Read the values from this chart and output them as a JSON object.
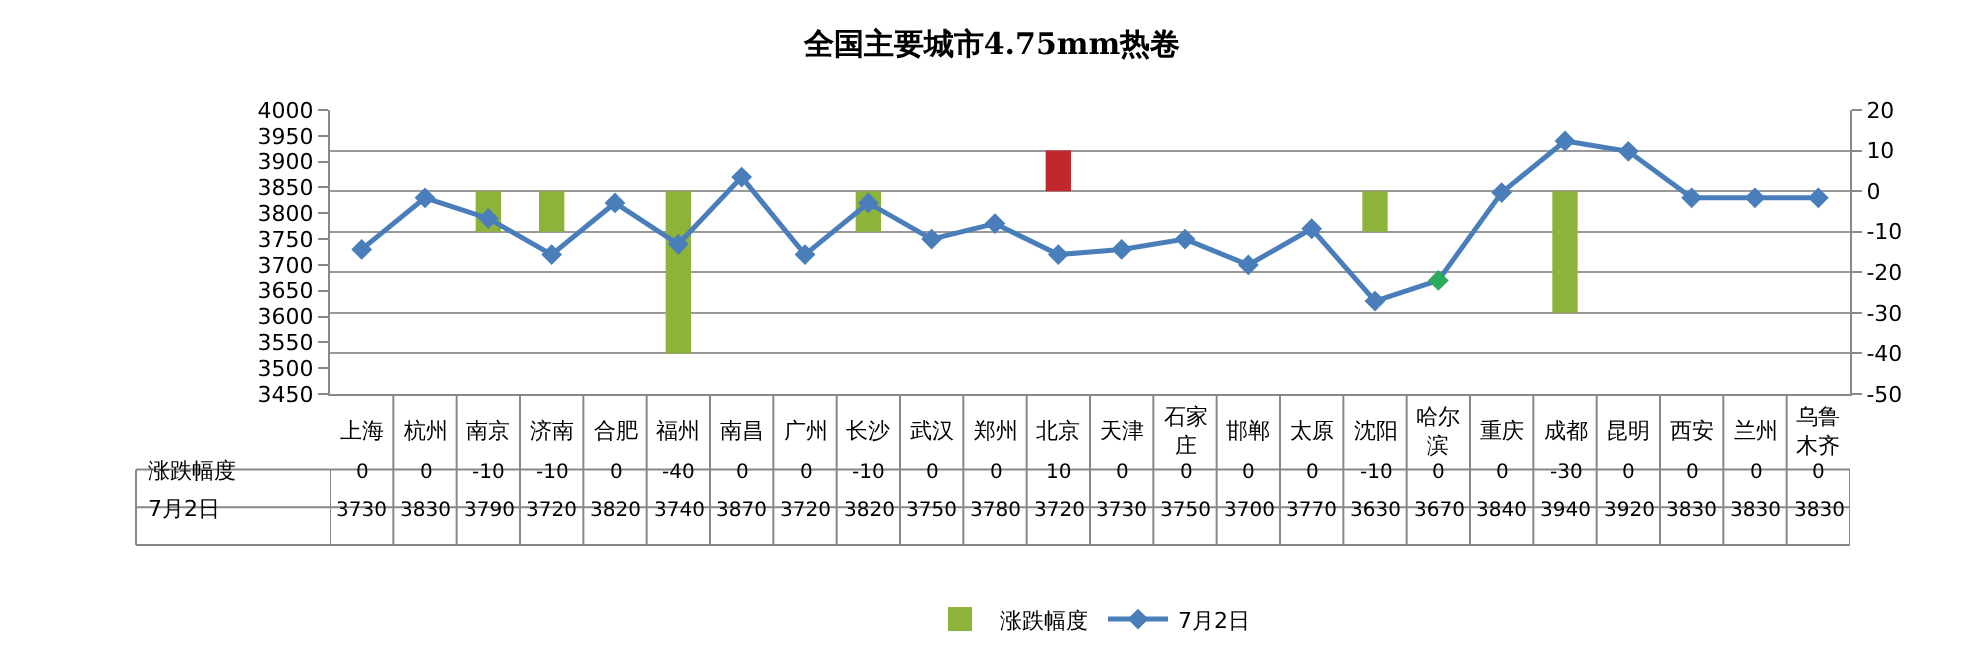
{
  "chart_data": {
    "type": "bar",
    "title": "全国主要城市4.75mm热卷",
    "categories": [
      "上海",
      "杭州",
      "南京",
      "济南",
      "合肥",
      "福州",
      "南昌",
      "广州",
      "长沙",
      "武汉",
      "郑州",
      "北京",
      "天津",
      "石家庄",
      "邯郸",
      "太原",
      "沈阳",
      "哈尔滨",
      "重庆",
      "成都",
      "昆明",
      "西安",
      "兰州",
      "乌鲁木齐"
    ],
    "series": [
      {
        "name": "涨跌幅度",
        "axis": "y2",
        "color": "#8db33a",
        "colors": [
          "#8db33a",
          "#8db33a",
          "#8db33a",
          "#8db33a",
          "#8db33a",
          "#8db33a",
          "#8db33a",
          "#8db33a",
          "#8db33a",
          "#8db33a",
          "#8db33a",
          "#c0282d",
          "#8db33a",
          "#8db33a",
          "#8db33a",
          "#8db33a",
          "#8db33a",
          "#8db33a",
          "#8db33a",
          "#8db33a",
          "#8db33a",
          "#8db33a",
          "#8db33a",
          "#8db33a"
        ],
        "values": [
          0,
          0,
          -10,
          -10,
          0,
          -40,
          0,
          0,
          -10,
          0,
          0,
          10,
          0,
          0,
          0,
          0,
          -10,
          0,
          0,
          -30,
          0,
          0,
          0,
          0
        ]
      },
      {
        "name": "7月2日",
        "type": "line",
        "axis": "y",
        "color": "#4a7ebb",
        "colors": [
          "#4a7ebb",
          "#4a7ebb",
          "#4a7ebb",
          "#4a7ebb",
          "#4a7ebb",
          "#4a7ebb",
          "#4a7ebb",
          "#4a7ebb",
          "#4a7ebb",
          "#4a7ebb",
          "#4a7ebb",
          "#4a7ebb",
          "#4a7ebb",
          "#4a7ebb",
          "#4a7ebb",
          "#4a7ebb",
          "#4a7ebb",
          "#2eaa5c",
          "#4a7ebb",
          "#4a7ebb",
          "#4a7ebb",
          "#4a7ebb",
          "#4a7ebb",
          "#4a7ebb"
        ],
        "marker": "diamond",
        "values": [
          3730,
          3830,
          3790,
          3720,
          3820,
          3740,
          3870,
          3720,
          3820,
          3750,
          3780,
          3720,
          3730,
          3750,
          3700,
          3770,
          3630,
          3670,
          3840,
          3940,
          3920,
          3830,
          3830,
          3830
        ]
      }
    ],
    "ylim": [
      3450,
      4000
    ],
    "yticks": [
      3450,
      3500,
      3550,
      3600,
      3650,
      3700,
      3750,
      3800,
      3850,
      3900,
      3950,
      4000
    ],
    "y2lim": [
      -50,
      20
    ],
    "y2ticks": [
      -50,
      -40,
      -30,
      -20,
      -10,
      0,
      10,
      20
    ],
    "grid": "y2",
    "legend": "bottom",
    "data_labels": true
  }
}
